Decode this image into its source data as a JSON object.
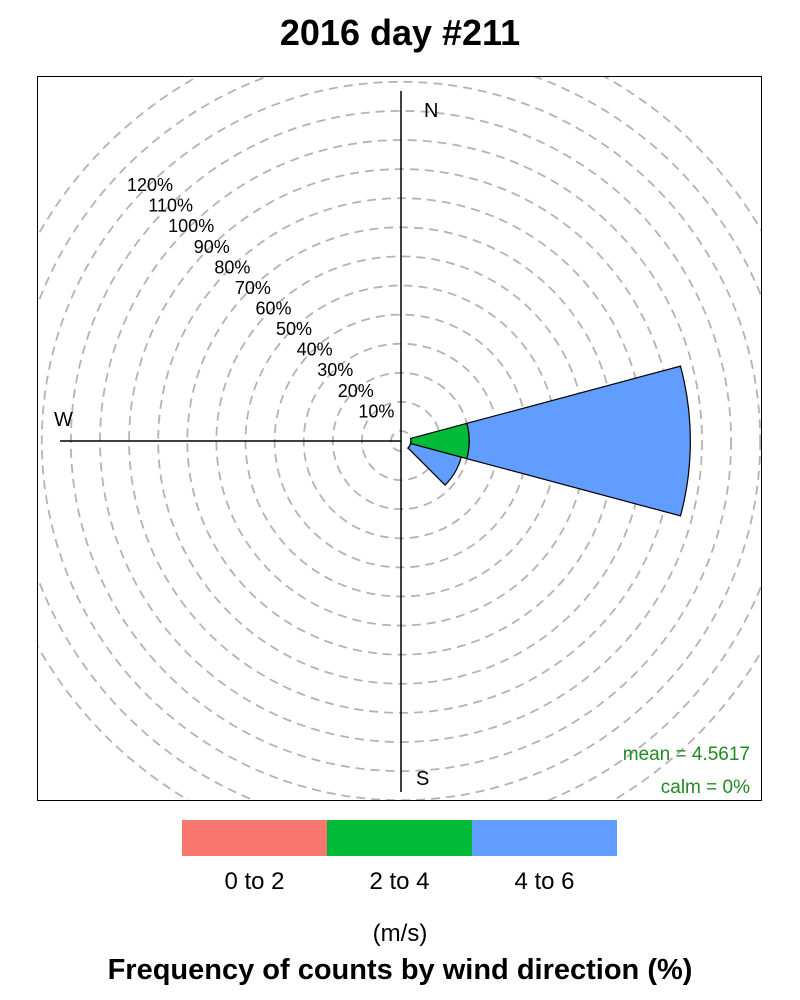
{
  "chart_data": {
    "type": "windrose",
    "title": "2016 day #211",
    "subtitle_bottom": "Frequency of counts by wind direction (%)",
    "units": "(m/s)",
    "directions": [
      "N",
      "W",
      "S"
    ],
    "radial_labels": [
      "10%",
      "20%",
      "30%",
      "40%",
      "50%",
      "60%",
      "70%",
      "80%",
      "90%",
      "100%",
      "110%",
      "120%"
    ],
    "radial_max": 120,
    "grid": true,
    "speed_bins": [
      {
        "name": "0 to 2",
        "color": "#F8766D"
      },
      {
        "name": "2 to 4",
        "color": "#00BA38"
      },
      {
        "name": "4 to 6",
        "color": "#619CFF"
      }
    ],
    "sectors": [
      {
        "direction_deg": 90,
        "width_deg": 30,
        "cumulative": [
          0,
          20,
          96
        ]
      },
      {
        "direction_deg": 120,
        "width_deg": 30,
        "cumulative": [
          0,
          0,
          18
        ]
      }
    ],
    "annotations": {
      "mean": "mean = 4.5617",
      "calm": "calm = 0%"
    },
    "annotation_color": "#228B22",
    "legend_position": "bottom"
  }
}
